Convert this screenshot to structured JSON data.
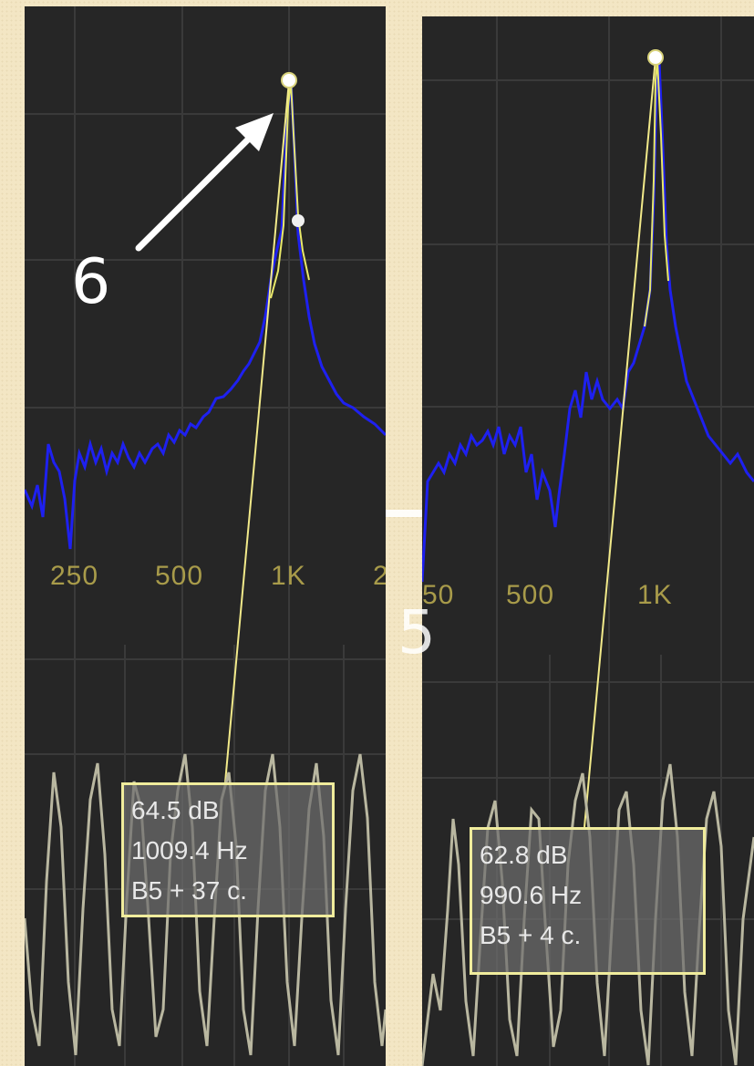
{
  "panels": {
    "left": {
      "axis_labels": [
        "250",
        "500",
        "1K",
        "2"
      ],
      "readout": {
        "level": "64.5 dB",
        "frequency": "1009.4 Hz",
        "note": "B5 + 37 c."
      }
    },
    "right": {
      "axis_labels": [
        "50",
        "500",
        "1K"
      ],
      "readout": {
        "level": "62.8 dB",
        "frequency": "990.6 Hz",
        "note": "B5 + 4 c."
      }
    }
  },
  "annotations": {
    "callout": "6",
    "ghost_number": "5"
  },
  "colors": {
    "panel_bg": "#262626",
    "grid": "#3a3a3a",
    "axis_text": "#a89b4a",
    "spectrum_low": "#2a2ad8",
    "spectrum_high": "#f0f020",
    "peak_line": "#f2ea8a",
    "waveform": "#b9b7a0",
    "readout_border": "#f0ec9c"
  },
  "icons": {
    "arrow": "arrow-icon",
    "peak_marker": "peak-marker-icon"
  }
}
